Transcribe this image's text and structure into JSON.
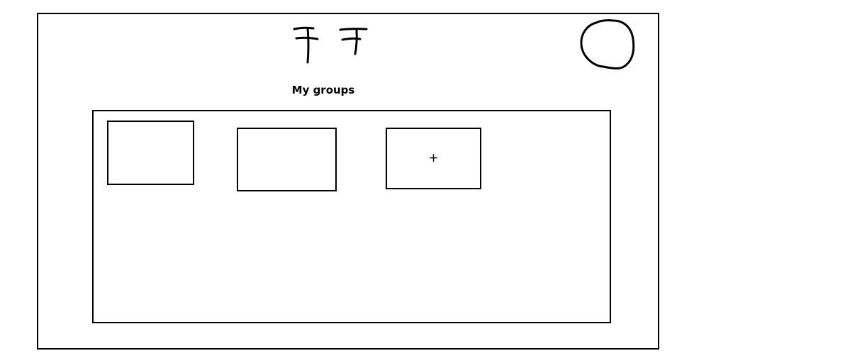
{
  "header": {
    "logo_icon": "logo-scribble-icon",
    "avatar_icon": "user-avatar-circle-icon"
  },
  "main": {
    "title": "My groups",
    "groups": [
      {
        "label": ""
      },
      {
        "label": ""
      }
    ],
    "add_group_symbol": "+"
  },
  "colors": {
    "stroke": "#000000",
    "background": "#ffffff"
  }
}
